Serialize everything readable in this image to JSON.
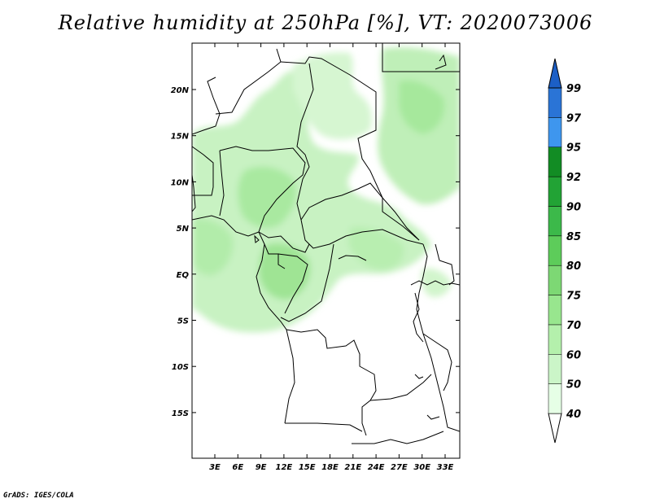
{
  "title": "Relative humidity at 250hPa [%], VT: 2020073006",
  "credit": "GrADS: IGES/COLA",
  "map": {
    "lat_ticks": [
      "20N",
      "15N",
      "10N",
      "5N",
      "EQ",
      "5S",
      "10S",
      "15S"
    ],
    "lon_ticks": [
      "3E",
      "6E",
      "9E",
      "12E",
      "15E",
      "18E",
      "21E",
      "24E",
      "27E",
      "30E",
      "33E"
    ]
  },
  "legend": {
    "levels": [
      "40",
      "50",
      "60",
      "70",
      "75",
      "80",
      "85",
      "90",
      "92",
      "95",
      "97",
      "99"
    ],
    "colors": [
      "#ffffff",
      "#e6ffe6",
      "#cbf5c8",
      "#b4f0ac",
      "#98e68e",
      "#7dd874",
      "#5dcc5a",
      "#3cb94a",
      "#22a335",
      "#128c24",
      "#3e96ee",
      "#2a74d6",
      "#1c5fc6"
    ]
  }
}
